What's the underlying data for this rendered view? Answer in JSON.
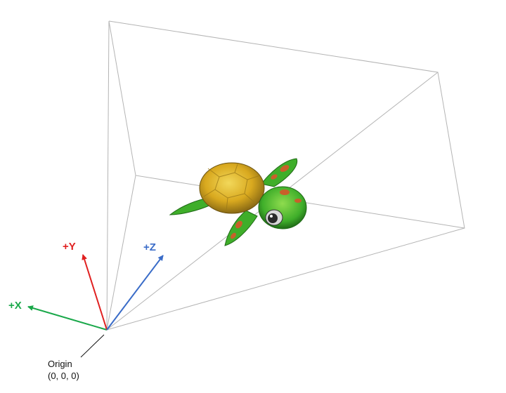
{
  "axes": {
    "x": {
      "label": "+X",
      "color": "#1aa84a"
    },
    "y": {
      "label": "+Y",
      "color": "#e02020"
    },
    "z": {
      "label": "+Z",
      "color": "#3a6cc8"
    }
  },
  "origin": {
    "label": "Origin",
    "coords": "(0, 0, 0)"
  },
  "frustum": {
    "line_color": "#b4b4b4"
  },
  "model": {
    "name": "turtle",
    "shell_color": "#d9a91f",
    "skin_color": "#3fae2a",
    "spot_color": "#c8602a"
  }
}
